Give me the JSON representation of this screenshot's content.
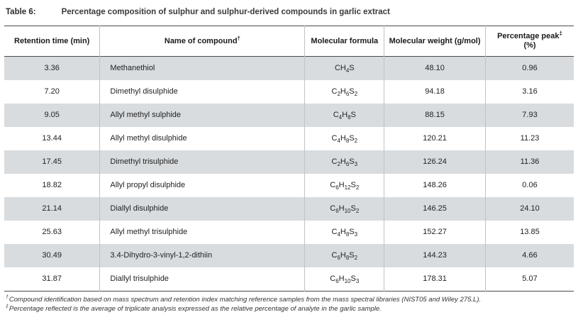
{
  "caption": {
    "label": "Table 6:",
    "title": "Percentage composition of sulphur and sulphur-derived compounds in garlic extract"
  },
  "table": {
    "headers": {
      "retention": "Retention time (min)",
      "name": "Name of compound",
      "name_mark": "†",
      "formula": "Molecular formula",
      "weight": "Molecular weight (g/mol)",
      "percent": "Percentage peak",
      "percent_mark": "‡",
      "percent_unit": " (%)"
    },
    "rows": [
      {
        "retention": "3.36",
        "name": "Methanethiol",
        "formula": "CH4S",
        "weight": "48.10",
        "percent": "0.96"
      },
      {
        "retention": "7.20",
        "name": "Dimethyl disulphide",
        "formula": "C2H6S2",
        "weight": "94.18",
        "percent": "3.16"
      },
      {
        "retention": "9.05",
        "name": "Allyl methyl sulphide",
        "formula": "C4H8S",
        "weight": "88.15",
        "percent": "7.93"
      },
      {
        "retention": "13.44",
        "name": "Allyl methyl disulphide",
        "formula": "C4H8S2",
        "weight": "120.21",
        "percent": "11.23"
      },
      {
        "retention": "17.45",
        "name": "Dimethyl trisulphide",
        "formula": "C2H6S3",
        "weight": "126.24",
        "percent": "11.36"
      },
      {
        "retention": "18.82",
        "name": "Allyl propyl disulphide",
        "formula": "C6H12S2",
        "weight": "148.26",
        "percent": "0.06"
      },
      {
        "retention": "21.14",
        "name": "Diallyl disulphide",
        "formula": "C6H10S2",
        "weight": "146.25",
        "percent": "24.10"
      },
      {
        "retention": "25.63",
        "name": "Allyl methyl trisulphide",
        "formula": "C4H8S3",
        "weight": "152.27",
        "percent": "13.85"
      },
      {
        "retention": "30.49",
        "name": "3.4-Dihydro-3-vinyl-1,2-dithiin",
        "formula": "C6H8S2",
        "weight": "144.23",
        "percent": "4.66"
      },
      {
        "retention": "31.87",
        "name": "Diallyl trisulphide",
        "formula": "C6H10S3",
        "weight": "178.31",
        "percent": "5.07"
      }
    ]
  },
  "footnotes": [
    {
      "mark": "†",
      "text": "Compound identification based on mass spectrum and retention index matching reference samples from the mass spectral libraries (NIST05 and Wiley 275.L)."
    },
    {
      "mark": "‡",
      "text": "Percentage reflected is the average of triplicate analysis expressed as the relative percentage of analyte in the garlic sample."
    }
  ]
}
